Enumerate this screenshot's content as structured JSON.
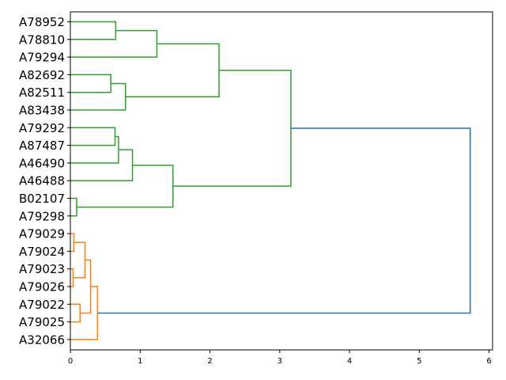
{
  "chart_data": {
    "type": "dendrogram",
    "orientation": "horizontal",
    "xlabel": "",
    "ylabel": "",
    "xlim": [
      0,
      6.05
    ],
    "x_ticks": [
      0,
      1,
      2,
      3,
      4,
      5,
      6
    ],
    "x_tick_labels": [
      "0",
      "1",
      "2",
      "3",
      "4",
      "5",
      "6"
    ],
    "colors": {
      "green": "#2ca02c",
      "orange": "#ff7f0e",
      "blue": "#1f77b4",
      "axis": "#000000"
    },
    "leaves": [
      "A78952",
      "A78810",
      "A79294",
      "A82692",
      "A82511",
      "A83438",
      "A79292",
      "A87487",
      "A46490",
      "A46488",
      "B02107",
      "A79298",
      "A79029",
      "A79024",
      "A79023",
      "A79026",
      "A79022",
      "A79025",
      "A32066"
    ],
    "merges": [
      {
        "a": "A78952",
        "b": "A78810",
        "height": 0.65,
        "color": "green",
        "id": "m1"
      },
      {
        "a": "m1",
        "b": "A79294",
        "height": 1.24,
        "color": "green",
        "id": "m2"
      },
      {
        "a": "A82692",
        "b": "A82511",
        "height": 0.58,
        "color": "green",
        "id": "m3"
      },
      {
        "a": "m3",
        "b": "A83438",
        "height": 0.79,
        "color": "green",
        "id": "m4"
      },
      {
        "a": "m2",
        "b": "m4",
        "height": 2.13,
        "color": "green",
        "id": "m5"
      },
      {
        "a": "A79292",
        "b": "A87487",
        "height": 0.64,
        "color": "green",
        "id": "m6"
      },
      {
        "a": "m6",
        "b": "A46490",
        "height": 0.69,
        "color": "green",
        "id": "m7"
      },
      {
        "a": "m7",
        "b": "A46488",
        "height": 0.89,
        "color": "green",
        "id": "m8"
      },
      {
        "a": "B02107",
        "b": "A79298",
        "height": 0.09,
        "color": "green",
        "id": "m9"
      },
      {
        "a": "m8",
        "b": "m9",
        "height": 1.47,
        "color": "green",
        "id": "m10"
      },
      {
        "a": "m5",
        "b": "m10",
        "height": 3.16,
        "color": "green",
        "id": "m11"
      },
      {
        "a": "A79029",
        "b": "A79024",
        "height": 0.05,
        "color": "orange",
        "id": "m12"
      },
      {
        "a": "m12",
        "b": "",
        "height": 0.21,
        "color": "orange",
        "id": "m13",
        "placeholder": true
      },
      {
        "a": "A79023",
        "b": "A79026",
        "height": 0.04,
        "color": "orange",
        "id": "m14"
      },
      {
        "a": "m12",
        "b": "m14",
        "height": 0.21,
        "color": "orange",
        "id": "m15"
      },
      {
        "a": "A79022",
        "b": "A79025",
        "height": 0.14,
        "color": "orange",
        "id": "m16"
      },
      {
        "a": "m15",
        "b": "m16",
        "height": 0.29,
        "color": "orange",
        "id": "m17"
      },
      {
        "a": "m17",
        "b": "A32066",
        "height": 0.39,
        "color": "orange",
        "id": "m18"
      },
      {
        "a": "m11",
        "b": "m18",
        "height": 5.73,
        "color": "blue",
        "id": "m19"
      }
    ]
  }
}
